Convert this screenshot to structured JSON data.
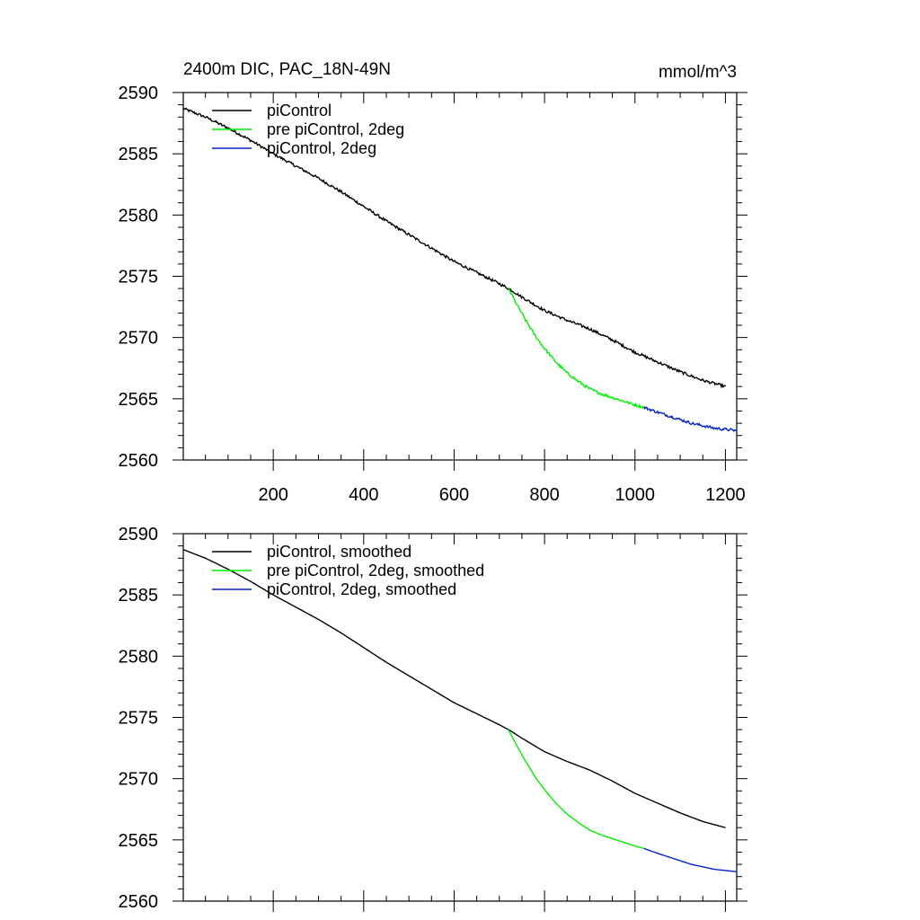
{
  "chart_data": [
    {
      "type": "line",
      "title": "2400m DIC, PAC_18N-49N",
      "units": "mmol/m^3",
      "xlim": [
        1,
        1225
      ],
      "ylim": [
        2560,
        2590
      ],
      "xticks": [
        200,
        400,
        600,
        800,
        1000,
        1200
      ],
      "xtick_labels": [
        "200",
        "400",
        "600",
        "800",
        "1000",
        "1200"
      ],
      "yticks": [
        2560,
        2565,
        2570,
        2575,
        2580,
        2585,
        2590
      ],
      "ytick_labels": [
        "2560",
        "2565",
        "2570",
        "2575",
        "2580",
        "2585",
        "2590"
      ],
      "legend_position": "top-left",
      "series": [
        {
          "name": "piControl",
          "color": "#000000",
          "x": [
            1,
            50,
            100,
            150,
            200,
            250,
            300,
            350,
            400,
            450,
            500,
            550,
            600,
            650,
            700,
            725,
            750,
            800,
            850,
            900,
            950,
            1000,
            1050,
            1100,
            1150,
            1200
          ],
          "y": [
            2588.7,
            2588.0,
            2587.1,
            2586.1,
            2585.0,
            2584.0,
            2583.0,
            2581.9,
            2580.7,
            2579.5,
            2578.4,
            2577.3,
            2576.2,
            2575.3,
            2574.4,
            2573.9,
            2573.3,
            2572.2,
            2571.4,
            2570.7,
            2569.8,
            2568.8,
            2568.0,
            2567.2,
            2566.5,
            2566.0
          ],
          "noisy": true
        },
        {
          "name": "pre piControl, 2deg",
          "color": "#00ee00",
          "x": [
            720,
            740,
            760,
            780,
            800,
            825,
            850,
            875,
            900,
            925,
            950,
            975,
            1000,
            1020
          ],
          "y": [
            2574.0,
            2572.6,
            2571.3,
            2570.1,
            2569.1,
            2568.0,
            2567.1,
            2566.4,
            2565.8,
            2565.4,
            2565.1,
            2564.8,
            2564.5,
            2564.3
          ],
          "noisy": true
        },
        {
          "name": "piControl, 2deg",
          "color": "#0022cc",
          "x": [
            1020,
            1050,
            1075,
            1100,
            1125,
            1150,
            1175,
            1200,
            1225
          ],
          "y": [
            2564.3,
            2563.9,
            2563.6,
            2563.3,
            2563.0,
            2562.8,
            2562.6,
            2562.5,
            2562.4
          ],
          "noisy": true
        }
      ]
    },
    {
      "type": "line",
      "xlim": [
        1,
        1225
      ],
      "ylim": [
        2560,
        2590
      ],
      "xticks": [
        200,
        400,
        600,
        800,
        1000,
        1200
      ],
      "yticks": [
        2560,
        2565,
        2570,
        2575,
        2580,
        2585,
        2590
      ],
      "ytick_labels": [
        "2560",
        "2565",
        "2570",
        "2575",
        "2580",
        "2585",
        "2590"
      ],
      "legend_position": "top-left",
      "series": [
        {
          "name": "piControl, smoothed",
          "color": "#000000",
          "x": [
            1,
            50,
            100,
            150,
            200,
            250,
            300,
            350,
            400,
            450,
            500,
            550,
            600,
            650,
            700,
            725,
            750,
            800,
            850,
            900,
            950,
            1000,
            1050,
            1100,
            1150,
            1200
          ],
          "y": [
            2588.7,
            2588.0,
            2587.1,
            2586.1,
            2585.0,
            2584.0,
            2583.0,
            2581.9,
            2580.7,
            2579.5,
            2578.4,
            2577.3,
            2576.2,
            2575.3,
            2574.4,
            2573.9,
            2573.3,
            2572.2,
            2571.4,
            2570.7,
            2569.8,
            2568.8,
            2568.0,
            2567.2,
            2566.5,
            2566.0
          ],
          "noisy": false
        },
        {
          "name": "pre piControl, 2deg, smoothed",
          "color": "#00ee00",
          "x": [
            720,
            740,
            760,
            780,
            800,
            825,
            850,
            875,
            900,
            925,
            950,
            975,
            1000,
            1020
          ],
          "y": [
            2574.0,
            2572.6,
            2571.3,
            2570.1,
            2569.1,
            2568.0,
            2567.1,
            2566.4,
            2565.8,
            2565.4,
            2565.1,
            2564.8,
            2564.5,
            2564.3
          ],
          "noisy": false
        },
        {
          "name": "piControl, 2deg, smoothed",
          "color": "#0022cc",
          "x": [
            1020,
            1050,
            1075,
            1100,
            1125,
            1150,
            1175,
            1200,
            1225
          ],
          "y": [
            2564.3,
            2563.9,
            2563.6,
            2563.3,
            2563.0,
            2562.8,
            2562.6,
            2562.5,
            2562.4
          ],
          "noisy": false
        }
      ]
    }
  ]
}
